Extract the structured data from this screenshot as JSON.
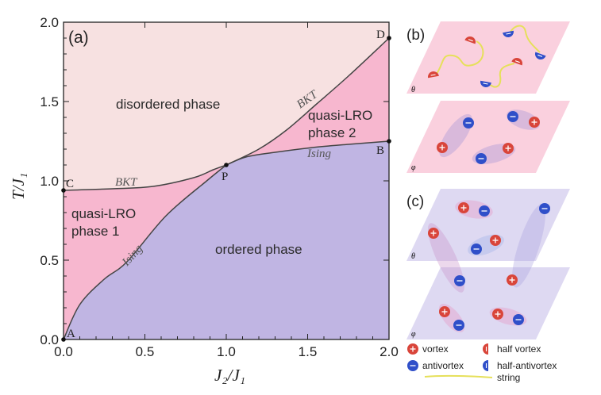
{
  "chart_data": {
    "type": "area",
    "panel_label": "(a)",
    "xlabel": "J₂/J₁",
    "ylabel": "T/J₁",
    "xlim": [
      0,
      2.0
    ],
    "ylim": [
      0,
      2.0
    ],
    "xticks": [
      "0.0",
      "0.5",
      "1.0",
      "1.5",
      "2.0"
    ],
    "yticks": [
      "0.0",
      "0.5",
      "1.0",
      "1.5",
      "2.0"
    ],
    "grid": false,
    "regions": {
      "disordered": {
        "label": "disordered phase",
        "color": "#f7e1e1"
      },
      "quasi1": {
        "label_line1": "quasi-LRO",
        "label_line2": "phase 1",
        "color": "#f7b7cf"
      },
      "quasi2": {
        "label_line1": "quasi-LRO",
        "label_line2": "phase 2",
        "color": "#f7b7cf"
      },
      "ordered": {
        "label": "ordered phase",
        "color": "#c0b5e3"
      }
    },
    "lines": {
      "bkt_low": {
        "label": "BKT",
        "x": [
          0,
          0.3,
          0.55,
          0.8,
          0.92,
          1.0
        ],
        "y": [
          0.94,
          0.95,
          0.965,
          1.02,
          1.07,
          1.1
        ]
      },
      "bkt_high": {
        "label": "BKT",
        "x": [
          1.0,
          1.2,
          1.37,
          1.55,
          1.75,
          2.0
        ],
        "y": [
          1.1,
          1.2,
          1.32,
          1.48,
          1.66,
          1.9
        ]
      },
      "ising_low": {
        "label": "Ising",
        "x": [
          0,
          0.1,
          0.25,
          0.39,
          0.63,
          0.88,
          1.0
        ],
        "y": [
          0,
          0.22,
          0.38,
          0.49,
          0.78,
          1.0,
          1.1
        ]
      },
      "ising_high": {
        "label": "Ising",
        "x": [
          1.0,
          1.12,
          1.3,
          1.53,
          1.75,
          2.0
        ],
        "y": [
          1.1,
          1.15,
          1.18,
          1.21,
          1.23,
          1.25
        ]
      }
    },
    "points": [
      {
        "label": "A",
        "x": 0,
        "y": 0
      },
      {
        "label": "C",
        "x": 0,
        "y": 0.94
      },
      {
        "label": "P",
        "x": 1.0,
        "y": 1.1
      },
      {
        "label": "B",
        "x": 2.0,
        "y": 1.25
      },
      {
        "label": "D",
        "x": 2.0,
        "y": 1.9
      }
    ]
  },
  "schematics": {
    "b": {
      "label": "(b)",
      "plane_color": "#f9c8d8",
      "theta": "θ",
      "phi": "φ"
    },
    "c": {
      "label": "(c)",
      "plane_color": "#d8d2f0",
      "theta": "θ",
      "phi": "φ"
    }
  },
  "legend": {
    "vortex": "vortex",
    "half_vortex": "half vortex",
    "antivortex": "antivortex",
    "half_antivortex": "half-antivortex",
    "string": "string",
    "vortex_color": "#d9453a",
    "antivortex_color": "#2f4fc9",
    "string_color": "#e6e05a"
  }
}
